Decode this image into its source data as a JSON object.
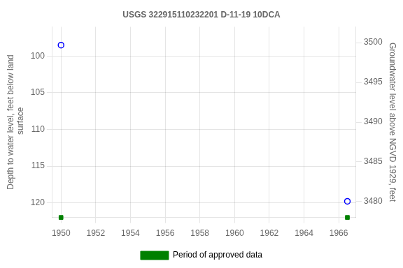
{
  "chart_data": {
    "type": "scatter",
    "title": "USGS 322915110232201 D-11-19 10DCA",
    "x": [
      1950.0,
      1966.5
    ],
    "series": [
      {
        "color": "#0000ff",
        "marker": "circle",
        "values": [
          98.5,
          119.8
        ]
      },
      {
        "name": "Period of approved data",
        "color": "#008000",
        "marker": "square",
        "values": [
          122,
          122
        ]
      }
    ],
    "xlim": [
      1949.5,
      1967.0
    ],
    "xticks": [
      1950,
      1952,
      1954,
      1956,
      1958,
      1960,
      1962,
      1964,
      1966
    ],
    "ylim": [
      122,
      96
    ],
    "yticks": [
      120,
      115,
      110,
      105,
      100
    ],
    "y2lim": [
      3478,
      3502
    ],
    "y2ticks": [
      3480,
      3485,
      3490,
      3495,
      3500
    ],
    "ylabel": "Depth to water level, feet below land\n surface",
    "y2label": "Groundwater level above NGVD 1929, feet",
    "grid": true,
    "legend": "bottom"
  }
}
